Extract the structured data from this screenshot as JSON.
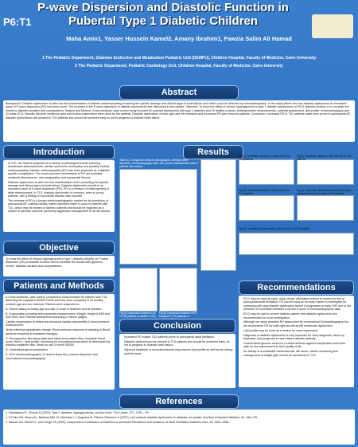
{
  "header": {
    "title": "P-wave Dispersion and Diastolic Function in Pubertal Type 1 Diabetic Children",
    "session": "P6:T1",
    "authors": "Maha Amin1, Yasser Hussein Kamel2, Amany Ibrahim1, Fawzia Salim Ali Hamad",
    "affiliations": [
      "1 The Pediatric Department, Diabetes Endocrine and Metabolism Pediatric Unit (DEMPU), Children Hospital, Faculty of Medicine, Cairo University",
      "2 The Pediatric Department, Pediatric Cardiology Unit, Children Hospital, Faculty of Medicine, Cairo University"
    ]
  },
  "abstract": {
    "heading": "Abstract",
    "text": "Background: Diastolic dysfunction is often the first manifestation of diabetic cardiomyopathy preceding the systolic damage and clinical signs of heart failure and which could be detected by echocardiography. In the adult patient who has diastolic dysfunction an increased value of P-wave dispersion (PD) has been found. The increase in the P-wave dispersion in diabetic adolescents was discussed in few studies. Objective: To show the effect of chronic hyperglycemia in type 1 diabetic adolescents on PD & diastolic function & to correlate the results to diabetes duration and complications. Subject and Method: Cross sectional, case control study included 50 pubertal adolescents with type 1 diabetes and 25 healthy controls. Anthropometric measurements, pubertal assessment, lipid profile, echocardiography and 12 leads ECG. Results: Albumin creatinine ratio and fundus examination were done for the patients. Diastolic dysfunction of both right and left ventricles and increased PD were found in patients. Conclusion: Increased PD in T1D patients make them prone to paroxysmal AF, diastolic dysfunctions are present in T1D patients and should be screened early so not to progress to diabetic heart failure."
  },
  "introduction": {
    "heading": "Introduction",
    "items": [
      "In T1D, the heart is subjected to a variety of pathological insults including accelerated atherosclerosis, cardiac autonomic neuropathy and possibly intrinsic cardiomyopathy. Diabetic cardiomyopathy (DC) has been proposed as a diabetic specific complication. The most important mechanisms of DC are probably metabolic disturbances, microangiopathy, and myocardial fibrosis.",
      "Diastolic dysfunction is often the first manifestation of DC preceding the systolic damage and clinical signs of heart failure. Diastolic dysfunction results in an increased value of P-wave dispersion (PD). PD is a measure of heterogeneity of atrial refractoriness. In T1D, diastolic dysfunction is common, even in young patients, with a finding of myocardial disease was reported.",
      "The increase in PD is a known electrocardiographic marker for the prediction of paroxysmal AF, making cardiac rhythm disorders liable to occur in patients with T1D, which may be related to diabetic patients and should be regarded as a marker of adverse outcome promoting aggressive management of all risk factors."
    ]
  },
  "objective": {
    "heading": "Objective",
    "text": "To show the effect of chronic hyperglycemia in type 1 diabetic children on P-wave dispersion (PD) & diastolic function and to correlate the results with glycemic control, diabetes duration and complications."
  },
  "methods": {
    "heading": "Patients and Methods",
    "items": [
      "A Cross-sectional, case-control, prospective study included 50 children with T1D attending the outpatient DEMPU clinic and they were compared to 25 healthy controls age and sex matched. Patients were subjected to:",
      "A- History taking including age and age of onset of diabetes and its duration.",
      "B- Examination including anthropometric measurement: Weight, Height & BMI and their SDS, and Pubertal assessment according to Tanner stages.",
      "Cardiac examination to detect any structural cardiac abnormality & blood pressure measurement.",
      "Tests reflecting sympathetic change: Blood pressure response to standing & Blood pressure response to sustained handgrip.",
      "C- Retrospective laboratory data were taken from patient files; Complete blood count, HbA1c, Lipid profile. Screening for microalbuminuria which is determined by albumin creatinine ratio. Mean for last 3 month SBGM.",
      "D- Ophthalmological examination.",
      "E- ECG electrocardiography 12 lead to show the p-waves dispersion and conventional echocardiography."
    ]
  },
  "results": {
    "heading": "Results",
    "table_caption": "Table (1): Comparison between demographic, anthropometric, laboratory, echocardiographic data, and p-wave characteristics data of patients and controls",
    "figure_captions": [
      "Fig (1): correlation between A mitral and PD in T1D patients",
      "Fig (2): correlation between IVRT and PD in T1D patients",
      "Fig (3): correlation between LVEDD and PD in T1D patients",
      "Fig (4): correlation between postural fall in blood pressure and E/A tricuspid in T1D patients",
      "Fig (5): correlation between albcr ratio and LDL in T1D patients",
      "Fig (6) comparison between LDL in T1D patients in relation to E/A",
      "Fig (8) comparison between IVRT tricuspid in T1D patients in relation to E/A"
    ]
  },
  "conclusion": {
    "heading": "Conclusion",
    "items": [
      "Increased PD makes T1D patients prone to paroxysmal atrial fibrillation.",
      "Diastolic dysfunctions are present in T1D patients and should be screened early, so not to progress to diabetic heart failure.",
      "Vigorous treatment of microalbuminuria may improve lipid profile as well as the kidney and the heart."
    ]
  },
  "recommendations": {
    "heading": "Recommendations",
    "items": [
      "ECG may be used as rapid, easy, cheap, affordable method to screen for risk of paroxysmal atrial fibrillation. PD can be used as an early marker to investigate for underlying still early diabetic dysfunction before it progresses to frank CHF due to the presence of correlation between a severe E score of echocardiographic data.",
      "ECG may be used to screen diabetic patient with diastolic dysfunction and recommended for echo investigation.",
      "Although our study revealed RV dysfunction by conventional Echocardiography but we recommend TDI for both right as well as left ventricular dysfunction.",
      "Lipid profile may be used as a marker for renal impairment.",
      "Diagnosis of diastolic dysfunction is very important for early diagnosis, follow up, treatment, and prognosis in heart failure diabetic patients.",
      "Careful blood glucose control is a critical defense against complication and is the path for the improvement to their quality of life.",
      "As obesity is a modifiable cardiovascular risk factor, careful monitoring and management of weight gain should be considered in T1D."
    ]
  },
  "references": {
    "heading": "References",
    "items": [
      "1. Ramakaran R., Zinman B (2000): Type 1 diabetes, hyperglycaemia, and the heart. The Lancet. 371: 1790 – 99.",
      "2. P Peira CM, Moura AL, Barbosa MM, M. Machado LJ, Nogueira AI, Ribeiro-Oliveira A Jr (2007): Left ventricle diastolic dysfunction in diabetes: an update. Arq Bras Endocrinol Metabol. 51: 168–175.",
      "3. Nichols GA, Reinier K, and Chugh SS (2009): Independent Contribution of Diabetes to Increased Prevalence and Incidence of Atrial Fibrillation Diabetes Care; 32: 1851–1856."
    ]
  }
}
